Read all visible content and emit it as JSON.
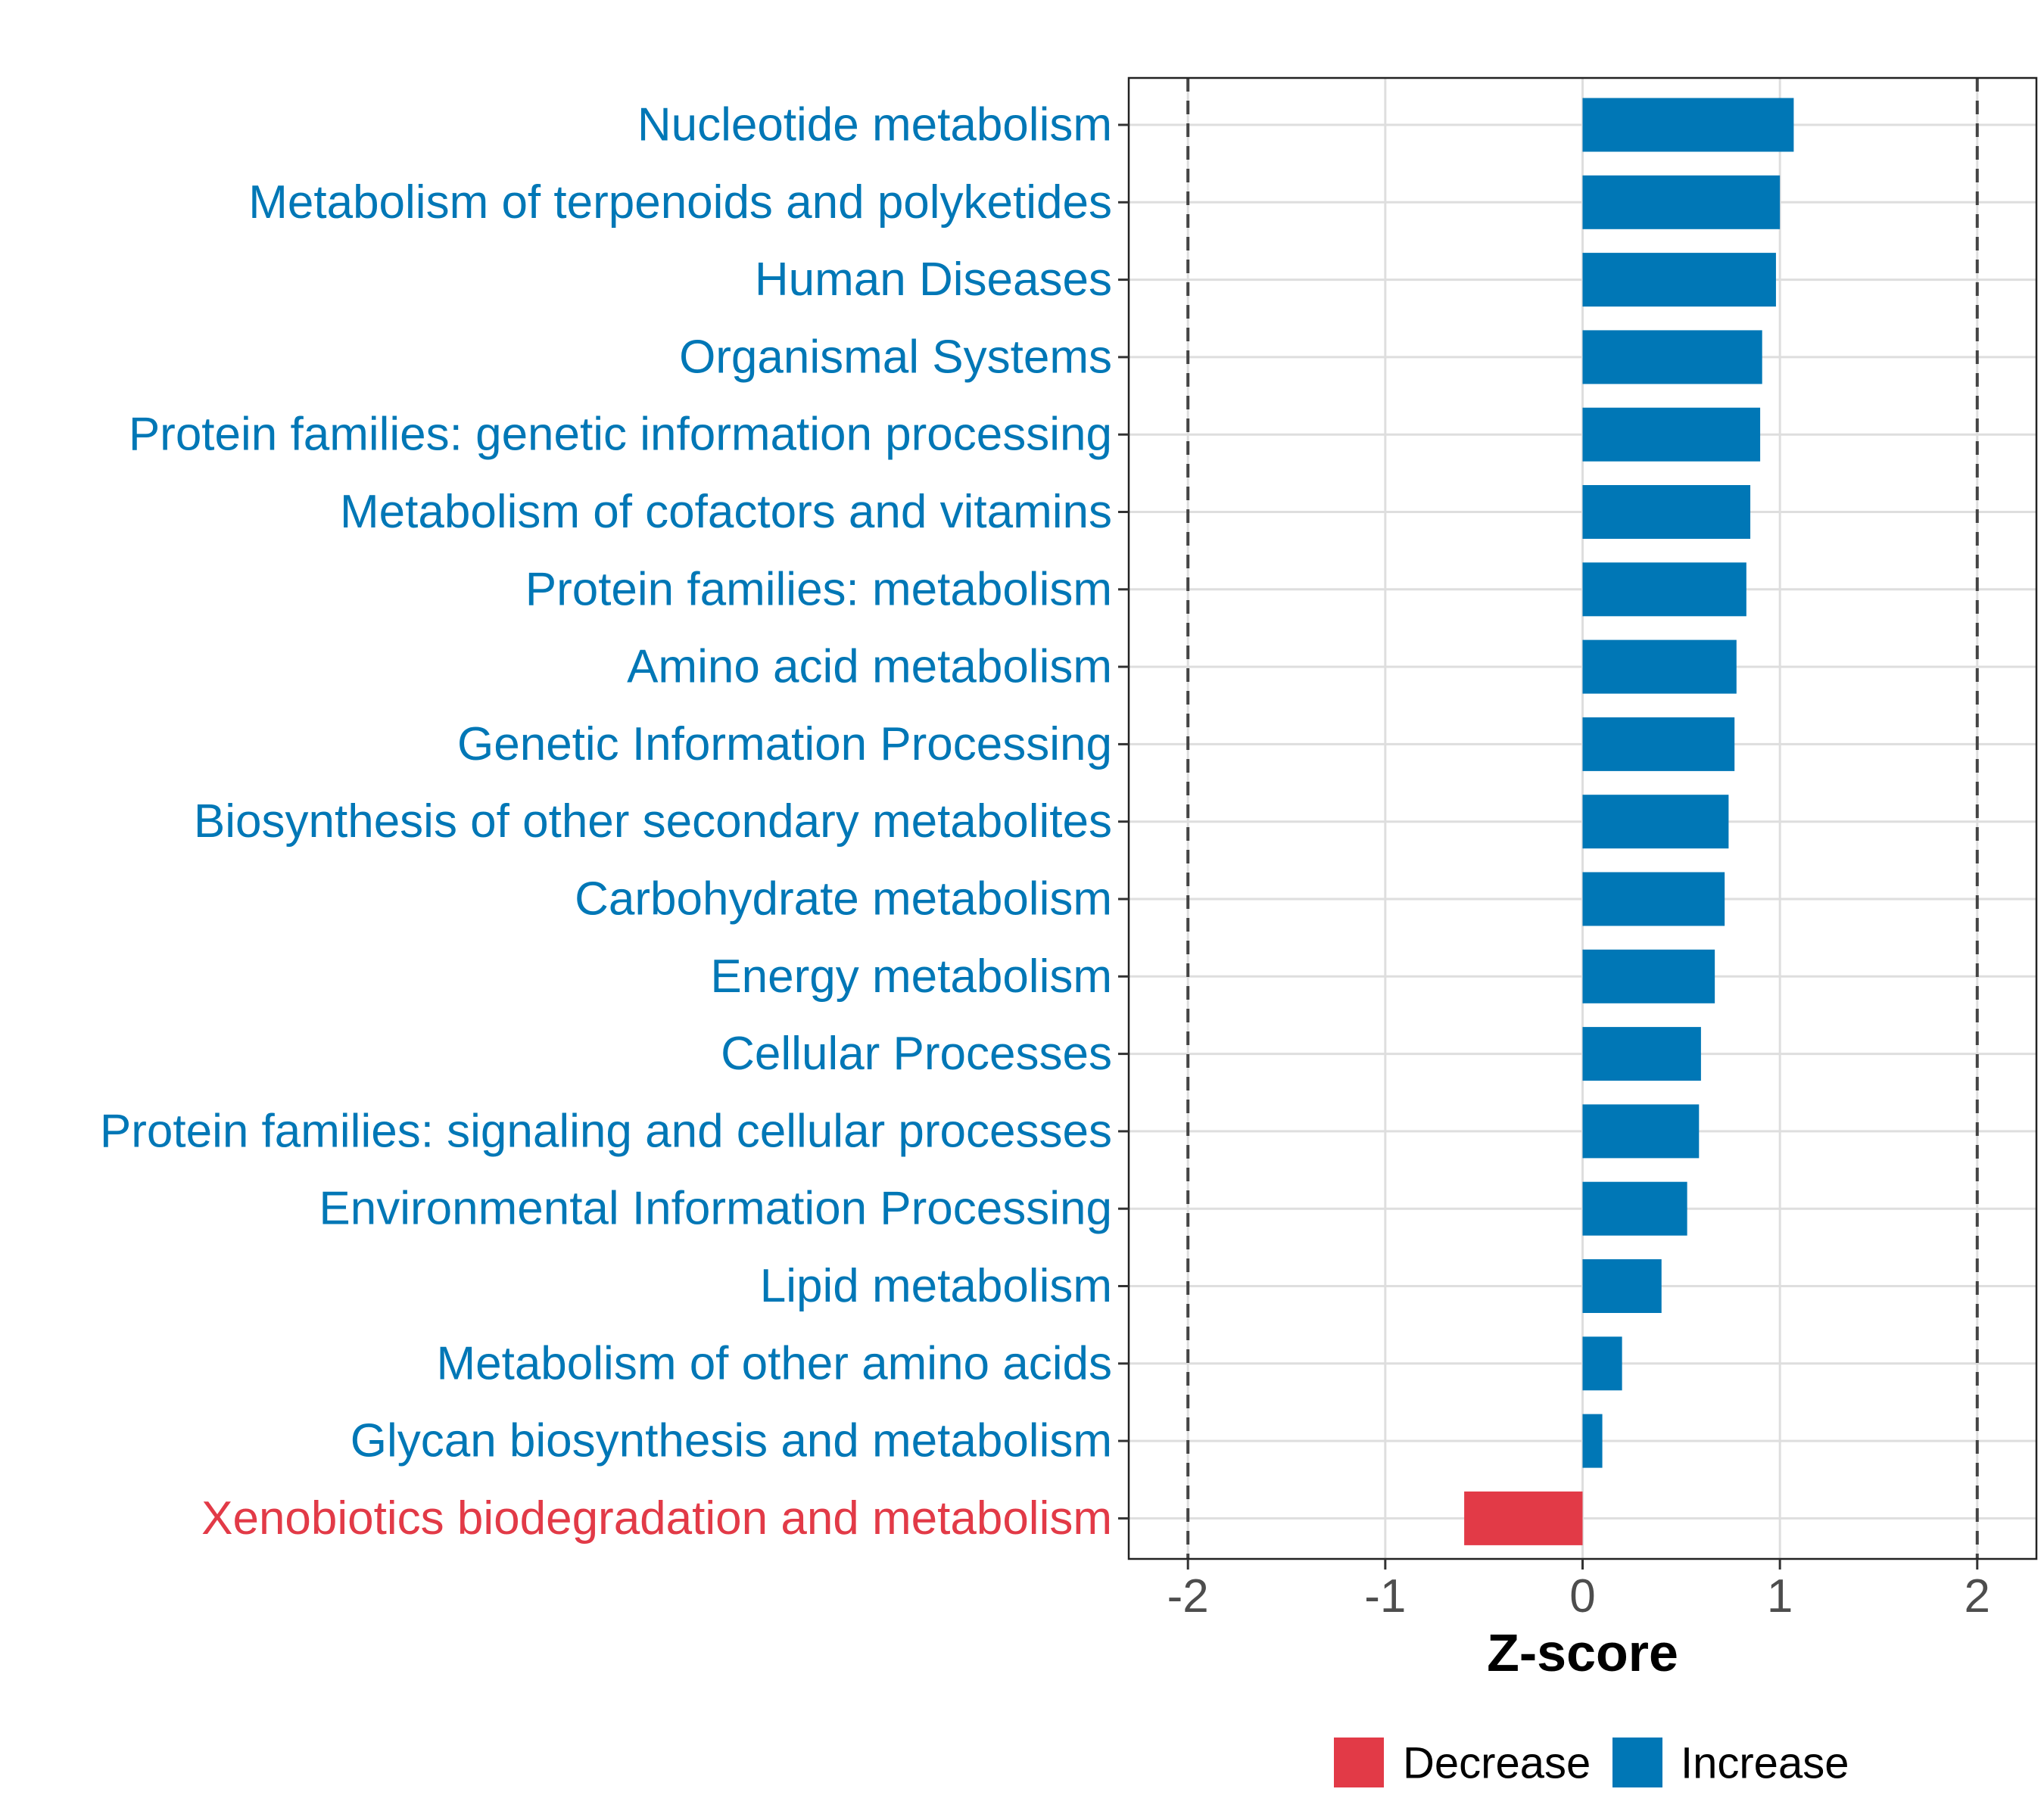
{
  "chart_data": {
    "type": "bar",
    "orientation": "horizontal",
    "title": "",
    "xlabel": "Z-score",
    "ylabel": "",
    "xlim": [
      -2.3,
      2.3
    ],
    "x_ticks": [
      -2,
      -1,
      0,
      1,
      2
    ],
    "x_tick_labels": [
      "-2",
      "-1",
      "0",
      "1",
      "2"
    ],
    "reference_lines": [
      -2,
      2
    ],
    "grid": true,
    "legend_position": "bottom",
    "colors": {
      "Decrease": "#e23a47",
      "Increase": "#0077b6"
    },
    "legend": [
      {
        "label": "Decrease",
        "color": "#e23a47"
      },
      {
        "label": "Increase",
        "color": "#0077b6"
      }
    ],
    "categories": [
      "Nucleotide metabolism",
      "Metabolism of terpenoids and polyketides",
      "Human Diseases",
      "Organismal Systems",
      "Protein families: genetic information processing",
      "Metabolism of cofactors and vitamins",
      "Protein families: metabolism",
      "Amino acid metabolism",
      "Genetic Information Processing",
      "Biosynthesis of other secondary metabolites",
      "Carbohydrate metabolism",
      "Energy metabolism",
      "Cellular Processes",
      "Protein families: signaling and cellular processes",
      "Environmental Information Processing",
      "Lipid metabolism",
      "Metabolism of other amino acids",
      "Glycan biosynthesis and metabolism",
      "Xenobiotics biodegradation and metabolism"
    ],
    "values": [
      1.07,
      1.0,
      0.98,
      0.91,
      0.9,
      0.85,
      0.83,
      0.78,
      0.77,
      0.74,
      0.72,
      0.67,
      0.6,
      0.59,
      0.53,
      0.4,
      0.2,
      0.1,
      -0.6
    ],
    "groups": [
      "Increase",
      "Increase",
      "Increase",
      "Increase",
      "Increase",
      "Increase",
      "Increase",
      "Increase",
      "Increase",
      "Increase",
      "Increase",
      "Increase",
      "Increase",
      "Increase",
      "Increase",
      "Increase",
      "Increase",
      "Increase",
      "Decrease"
    ]
  }
}
